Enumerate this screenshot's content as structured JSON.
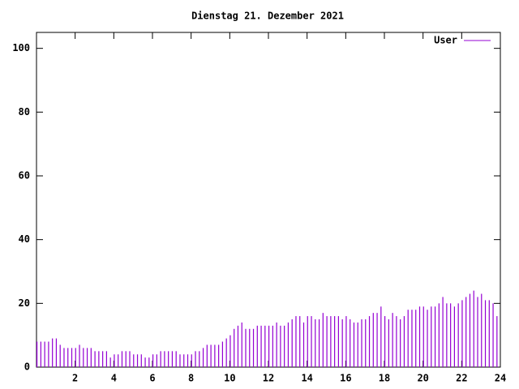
{
  "chart_data": {
    "type": "impulse",
    "title": "Dienstag 21. Dezember 2021",
    "series": [
      {
        "name": "User",
        "color": "#9400d3",
        "x": [
          0,
          0.2,
          0.4,
          0.6,
          0.8,
          1,
          1.2,
          1.4,
          1.6,
          1.8,
          2,
          2.2,
          2.4,
          2.6,
          2.8,
          3,
          3.2,
          3.4,
          3.6,
          3.8,
          4,
          4.2,
          4.4,
          4.6,
          4.8,
          5,
          5.2,
          5.4,
          5.6,
          5.8,
          6,
          6.2,
          6.4,
          6.6,
          6.8,
          7,
          7.2,
          7.4,
          7.6,
          7.8,
          8,
          8.2,
          8.4,
          8.6,
          8.8,
          9,
          9.2,
          9.4,
          9.6,
          9.8,
          10,
          10.2,
          10.4,
          10.6,
          10.8,
          11,
          11.2,
          11.4,
          11.6,
          11.8,
          12,
          12.2,
          12.4,
          12.6,
          12.8,
          13,
          13.2,
          13.4,
          13.6,
          13.8,
          14,
          14.2,
          14.4,
          14.6,
          14.8,
          15,
          15.2,
          15.4,
          15.6,
          15.8,
          16,
          16.2,
          16.4,
          16.6,
          16.8,
          17,
          17.2,
          17.4,
          17.6,
          17.8,
          18,
          18.2,
          18.4,
          18.6,
          18.8,
          19,
          19.2,
          19.4,
          19.6,
          19.8,
          20,
          20.2,
          20.4,
          20.6,
          20.8,
          21,
          21.2,
          21.4,
          21.6,
          21.8,
          22,
          22.2,
          22.4,
          22.6,
          22.8,
          23,
          23.2,
          23.4,
          23.6,
          23.8
        ],
        "values": [
          8,
          8,
          8,
          8,
          9,
          9,
          7,
          6,
          6,
          6,
          6,
          7,
          6,
          6,
          6,
          5,
          5,
          5,
          5,
          3,
          4,
          4,
          5,
          5,
          5,
          4,
          4,
          4,
          3,
          3,
          4,
          4,
          5,
          5,
          5,
          5,
          5,
          4,
          4,
          4,
          4,
          5,
          5,
          6,
          7,
          7,
          7,
          7,
          8,
          9,
          10,
          12,
          13,
          14,
          12,
          12,
          12,
          13,
          13,
          13,
          13,
          13,
          14,
          13,
          13,
          14,
          15,
          16,
          16,
          14,
          16,
          16,
          15,
          15,
          17,
          16,
          16,
          16,
          16,
          15,
          16,
          15,
          14,
          14,
          15,
          15,
          16,
          17,
          17,
          19,
          16,
          15,
          17,
          16,
          15,
          16,
          18,
          18,
          18,
          19,
          19,
          18,
          19,
          19,
          20,
          22,
          20,
          20,
          19,
          20,
          21,
          22,
          23,
          24,
          22,
          23,
          21,
          21,
          20,
          16
        ]
      }
    ],
    "xlim": [
      0,
      24
    ],
    "xticks": [
      2,
      4,
      6,
      8,
      10,
      12,
      14,
      16,
      18,
      20,
      22,
      24
    ],
    "ylim": [
      0,
      105
    ],
    "yticks": [
      0,
      20,
      40,
      60,
      80,
      100
    ],
    "legend": "upper right"
  }
}
